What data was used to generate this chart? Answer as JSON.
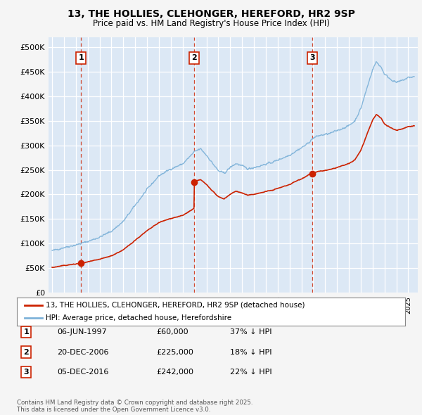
{
  "title1": "13, THE HOLLIES, CLEHONGER, HEREFORD, HR2 9SP",
  "title2": "Price paid vs. HM Land Registry's House Price Index (HPI)",
  "ylim": [
    0,
    520000
  ],
  "yticks": [
    0,
    50000,
    100000,
    150000,
    200000,
    250000,
    300000,
    350000,
    400000,
    450000,
    500000
  ],
  "ytick_labels": [
    "£0",
    "£50K",
    "£100K",
    "£150K",
    "£200K",
    "£250K",
    "£300K",
    "£350K",
    "£400K",
    "£450K",
    "£500K"
  ],
  "xlim_start": 1994.7,
  "xlim_end": 2025.8,
  "background_color": "#f0f0f0",
  "plot_bg": "#dce8f5",
  "grid_color": "#ffffff",
  "red_line_color": "#cc2200",
  "blue_line_color": "#7fb3d9",
  "sale1_date": 1997.44,
  "sale1_price": 60000,
  "sale1_label": "1",
  "sale2_date": 2006.97,
  "sale2_price": 225000,
  "sale2_label": "2",
  "sale3_date": 2016.93,
  "sale3_price": 242000,
  "sale3_label": "3",
  "legend_line1": "13, THE HOLLIES, CLEHONGER, HEREFORD, HR2 9SP (detached house)",
  "legend_line2": "HPI: Average price, detached house, Herefordshire",
  "table_rows": [
    {
      "num": "1",
      "date": "06-JUN-1997",
      "price": "£60,000",
      "pct": "37% ↓ HPI"
    },
    {
      "num": "2",
      "date": "20-DEC-2006",
      "price": "£225,000",
      "pct": "18% ↓ HPI"
    },
    {
      "num": "3",
      "date": "05-DEC-2016",
      "price": "£242,000",
      "pct": "22% ↓ HPI"
    }
  ],
  "footer": "Contains HM Land Registry data © Crown copyright and database right 2025.\nThis data is licensed under the Open Government Licence v3.0."
}
